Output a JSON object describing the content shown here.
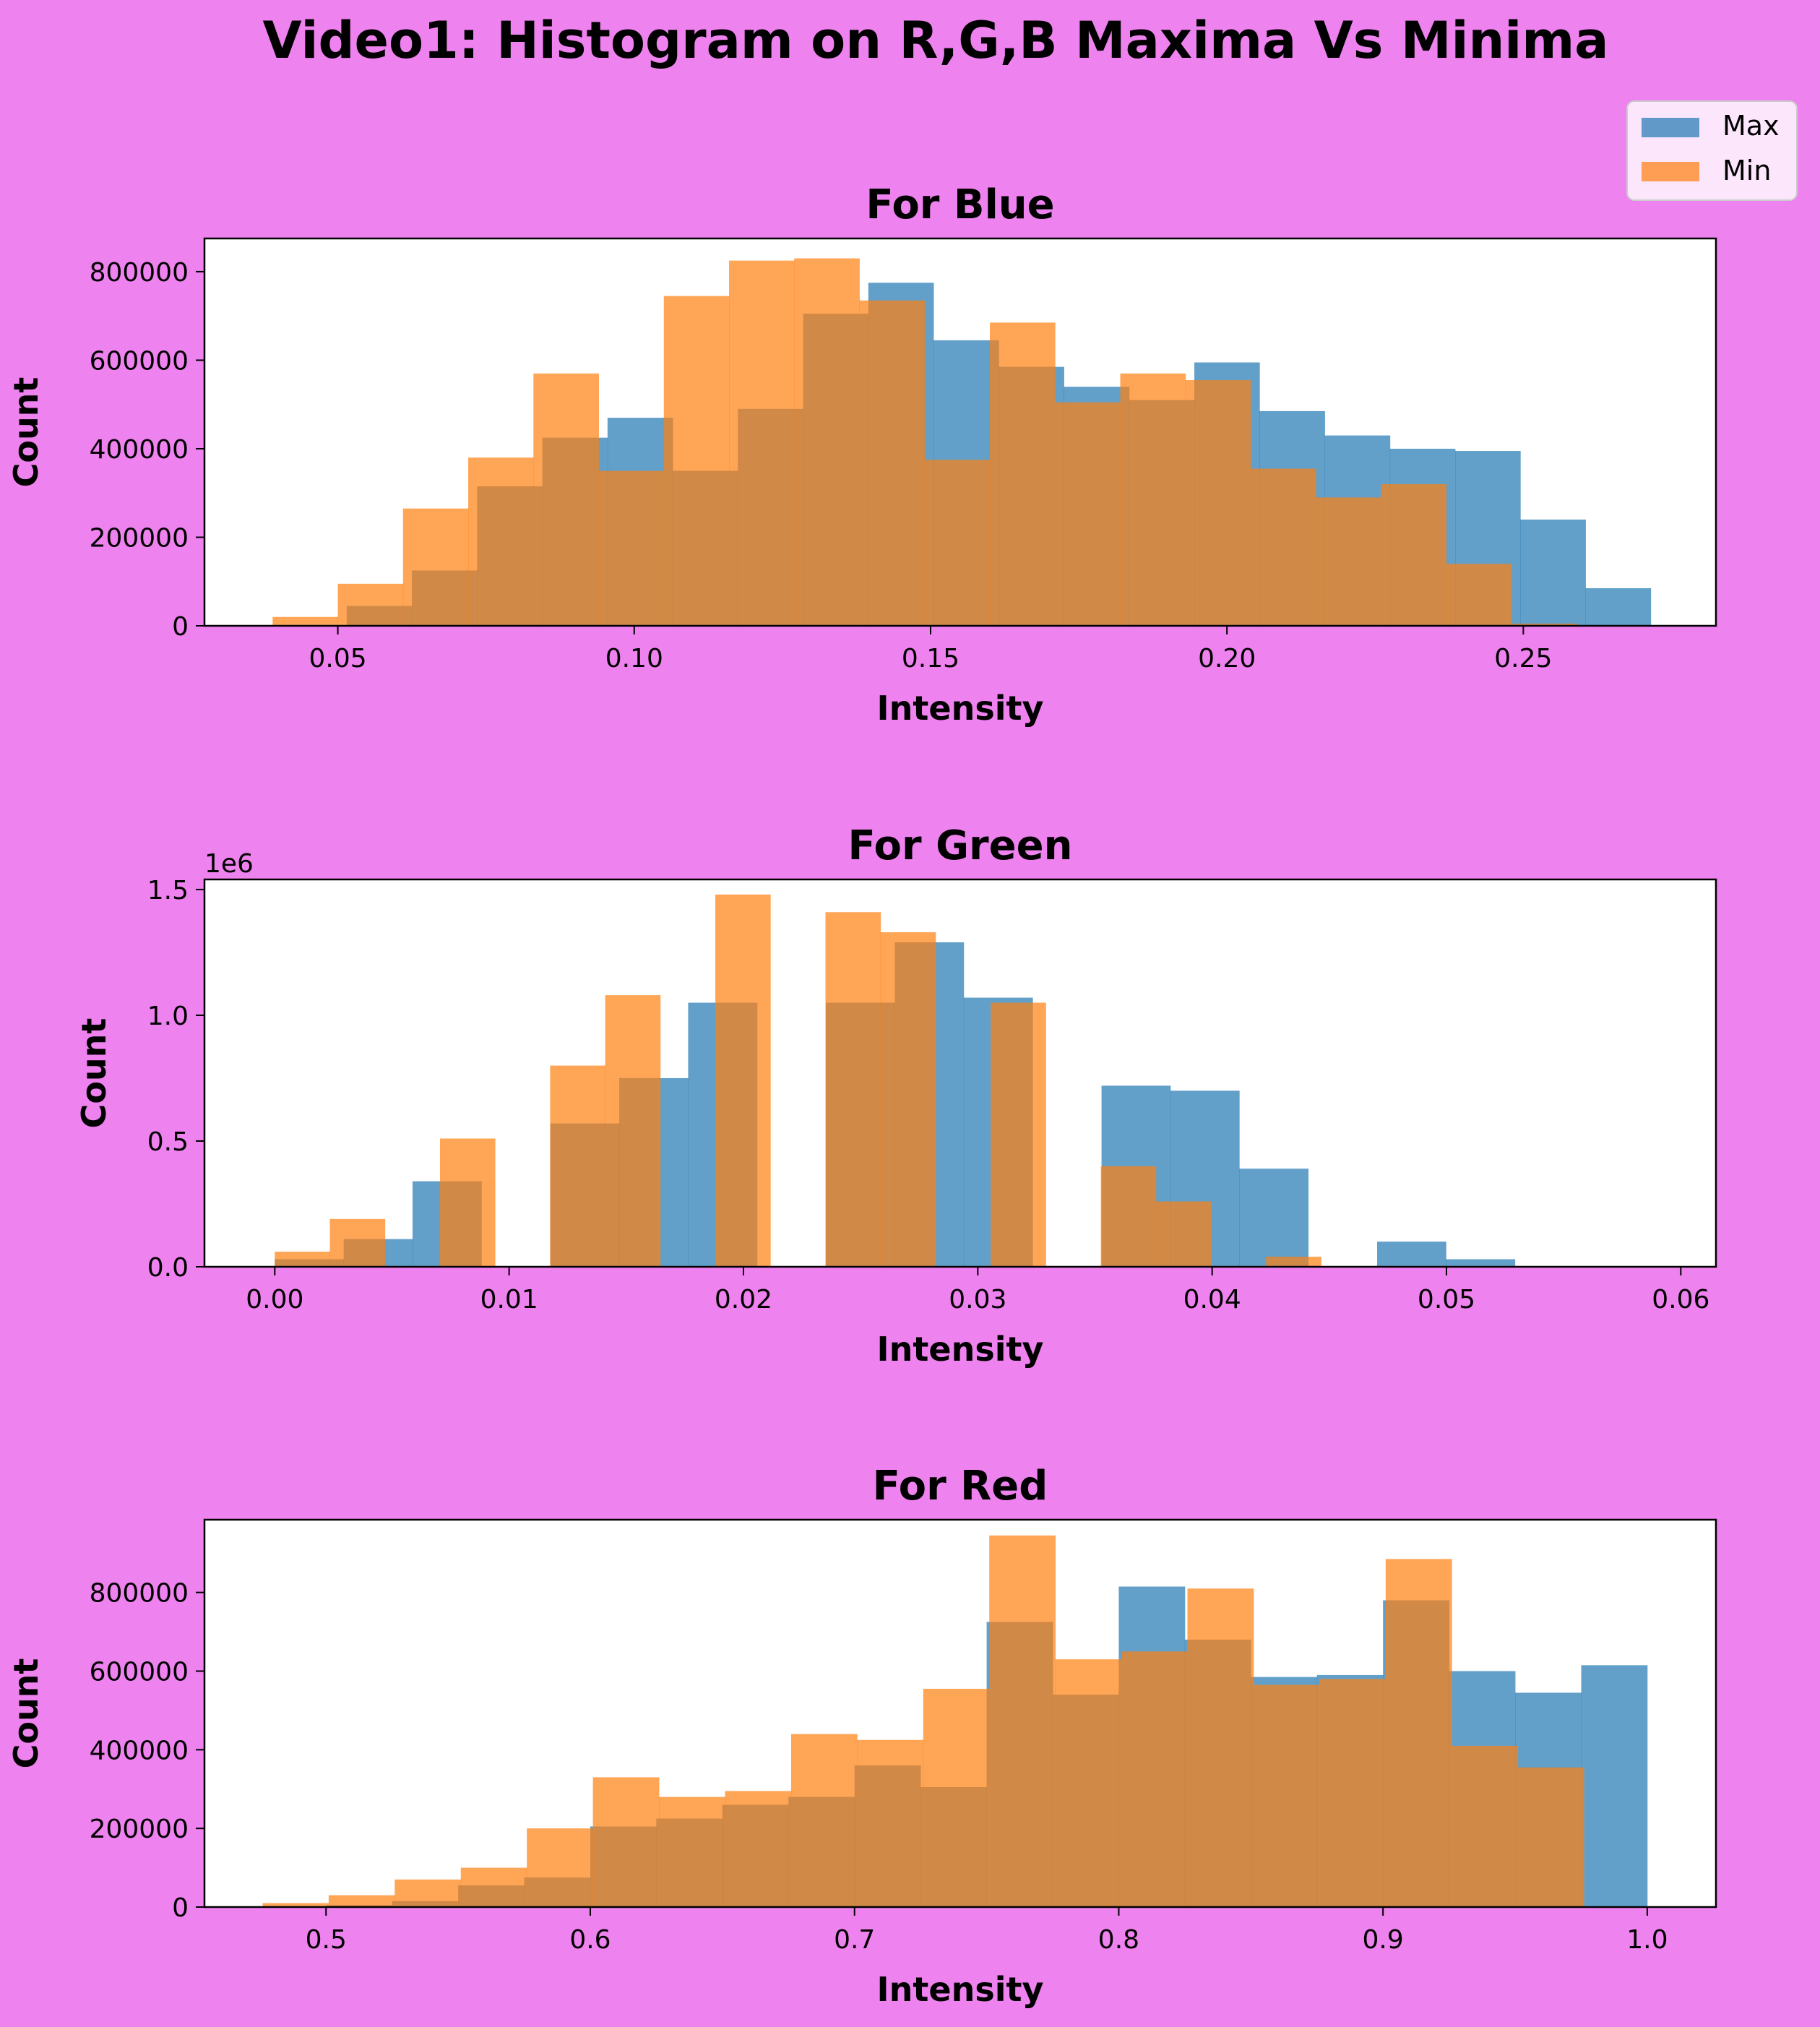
{
  "figure_title": "Video1: Histogram on R,G,B Maxima Vs Minima",
  "colors": {
    "background": "#ee82ee",
    "max": "#1f77b4",
    "min": "#ff7f0e",
    "plot_bg": "#ffffff"
  },
  "legend": {
    "placement": "top-right",
    "items": [
      "Max",
      "Min"
    ]
  },
  "chart_data": [
    {
      "type": "bar",
      "title": "For Blue",
      "xlabel": "Intensity",
      "ylabel": "Count",
      "xlim": [
        0.0275,
        0.2825
      ],
      "ylim": [
        0,
        875000
      ],
      "xticks": [
        0.05,
        0.1,
        0.15,
        0.2,
        0.25
      ],
      "xtick_labels": [
        "0.05",
        "0.10",
        "0.15",
        "0.20",
        "0.25"
      ],
      "yticks": [
        0,
        200000,
        400000,
        600000,
        800000
      ],
      "ytick_labels": [
        "0",
        "200000",
        "400000",
        "600000",
        "800000"
      ],
      "series": [
        {
          "name": "Max",
          "edges": [
            0.0515,
            0.0625,
            0.0735,
            0.0845,
            0.0955,
            0.1065,
            0.1175,
            0.1285,
            0.1395,
            0.1505,
            0.1615,
            0.1725,
            0.1835,
            0.1945,
            0.2055,
            0.2165,
            0.2275,
            0.2385,
            0.2495,
            0.2605,
            0.2715
          ],
          "counts": [
            45000,
            125000,
            315000,
            425000,
            470000,
            350000,
            490000,
            705000,
            775000,
            645000,
            585000,
            540000,
            510000,
            595000,
            485000,
            430000,
            400000,
            395000,
            240000,
            85000
          ]
        },
        {
          "name": "Min",
          "edges": [
            0.039,
            0.05,
            0.061,
            0.072,
            0.083,
            0.094,
            0.105,
            0.116,
            0.127,
            0.138,
            0.149,
            0.16,
            0.171,
            0.182,
            0.193,
            0.204,
            0.215,
            0.226,
            0.237,
            0.248,
            0.259
          ],
          "counts": [
            20000,
            95000,
            265000,
            380000,
            570000,
            350000,
            745000,
            825000,
            830000,
            735000,
            375000,
            685000,
            505000,
            570000,
            555000,
            355000,
            290000,
            320000,
            140000,
            5000
          ]
        }
      ]
    },
    {
      "type": "bar",
      "title": "For Green",
      "xlabel": "Intensity",
      "ylabel": "Count",
      "offset_label": "1e6",
      "xlim": [
        -0.003,
        0.0615
      ],
      "ylim": [
        0,
        1.54
      ],
      "xticks": [
        0.0,
        0.01,
        0.02,
        0.03,
        0.04,
        0.05,
        0.06
      ],
      "xtick_labels": [
        "0.00",
        "0.01",
        "0.02",
        "0.03",
        "0.04",
        "0.05",
        "0.06"
      ],
      "yticks": [
        0,
        0.5,
        1.0,
        1.5
      ],
      "ytick_labels": [
        "0.0",
        "0.5",
        "1.0",
        "1.5"
      ],
      "series": [
        {
          "name": "Max",
          "edges": [
            0.0,
            0.00294,
            0.00588,
            0.00882,
            0.01176,
            0.0147,
            0.01764,
            0.02058,
            0.02352,
            0.02646,
            0.0294,
            0.03234,
            0.03528,
            0.03822,
            0.04116,
            0.0441,
            0.04704,
            0.04998,
            0.05292,
            0.05586,
            0.0588
          ],
          "counts": [
            0.03,
            0.11,
            0.34,
            0,
            0.57,
            0.75,
            1.05,
            0,
            1.05,
            1.29,
            1.07,
            0,
            0.72,
            0.7,
            0.39,
            0,
            0.1,
            0.03,
            0,
            0
          ]
        },
        {
          "name": "Min",
          "edges": [
            0.0,
            0.00235,
            0.0047,
            0.00705,
            0.0094,
            0.01175,
            0.0141,
            0.01645,
            0.0188,
            0.02115,
            0.0235,
            0.02585,
            0.0282,
            0.03055,
            0.0329,
            0.03525,
            0.0376,
            0.03995,
            0.0423,
            0.04465,
            0.047
          ],
          "counts": [
            0.06,
            0.19,
            0,
            0.51,
            0,
            0.8,
            1.08,
            0,
            1.48,
            0,
            1.41,
            1.33,
            0,
            1.05,
            0,
            0.4,
            0.26,
            0,
            0.04,
            0
          ]
        }
      ]
    },
    {
      "type": "bar",
      "title": "For Red",
      "xlabel": "Intensity",
      "ylabel": "Count",
      "xlim": [
        0.454,
        1.026
      ],
      "ylim": [
        0,
        985000
      ],
      "xticks": [
        0.5,
        0.6,
        0.7,
        0.8,
        0.9,
        1.0
      ],
      "xtick_labels": [
        "0.5",
        "0.6",
        "0.7",
        "0.8",
        "0.9",
        "1.0"
      ],
      "yticks": [
        0,
        200000,
        400000,
        600000,
        800000
      ],
      "ytick_labels": [
        "0",
        "200000",
        "400000",
        "600000",
        "800000"
      ],
      "series": [
        {
          "name": "Max",
          "edges": [
            0.5,
            0.525,
            0.55,
            0.575,
            0.6,
            0.625,
            0.65,
            0.675,
            0.7,
            0.725,
            0.75,
            0.775,
            0.8,
            0.825,
            0.85,
            0.875,
            0.9,
            0.925,
            0.95,
            0.975,
            1.0
          ],
          "counts": [
            5000,
            15000,
            55000,
            75000,
            205000,
            225000,
            260000,
            280000,
            360000,
            305000,
            725000,
            540000,
            815000,
            680000,
            585000,
            590000,
            780000,
            600000,
            545000,
            615000
          ]
        },
        {
          "name": "Min",
          "edges": [
            0.476,
            0.501,
            0.526,
            0.551,
            0.576,
            0.601,
            0.626,
            0.651,
            0.676,
            0.701,
            0.726,
            0.751,
            0.776,
            0.801,
            0.826,
            0.851,
            0.876,
            0.901,
            0.926,
            0.951,
            0.976
          ],
          "counts": [
            10000,
            30000,
            70000,
            100000,
            200000,
            330000,
            280000,
            295000,
            440000,
            425000,
            555000,
            945000,
            630000,
            650000,
            810000,
            565000,
            580000,
            885000,
            410000,
            355000
          ]
        }
      ]
    }
  ]
}
